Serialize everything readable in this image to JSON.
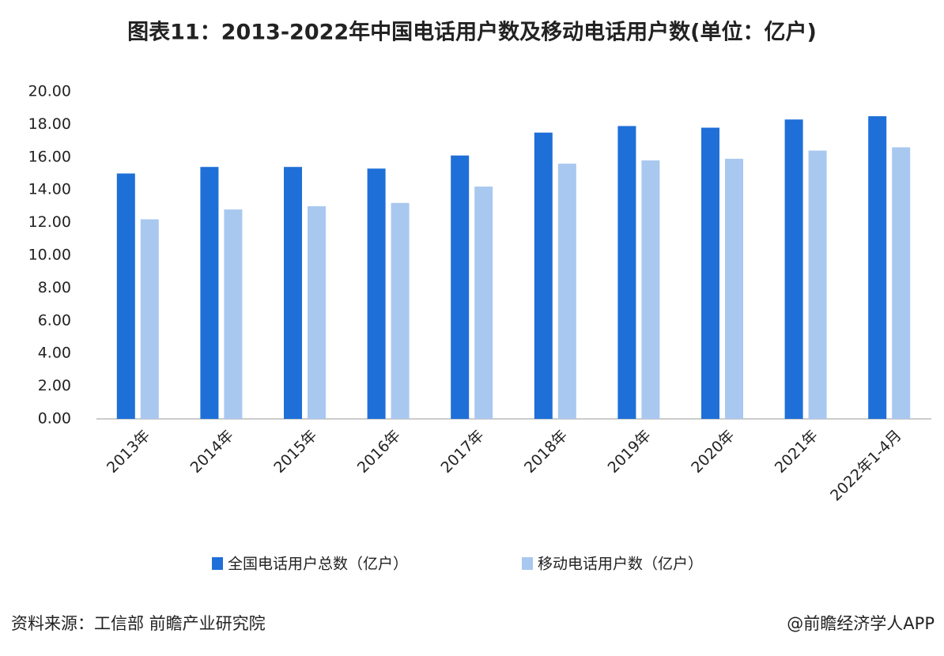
{
  "chart_data": {
    "type": "bar",
    "title": "图表11：2013-2022年中国电话用户数及移动电话用户数(单位：亿户)",
    "categories": [
      "2013年",
      "2014年",
      "2015年",
      "2016年",
      "2017年",
      "2018年",
      "2019年",
      "2020年",
      "2021年",
      "2022年1-4月"
    ],
    "series": [
      {
        "name": "全国电话用户总数（亿户）",
        "color": "#1f6fd8",
        "values": [
          15.0,
          15.4,
          15.4,
          15.3,
          16.1,
          17.5,
          17.9,
          17.8,
          18.3,
          18.5
        ]
      },
      {
        "name": "移动电话用户数（亿户）",
        "color": "#a9c8f0",
        "values": [
          12.2,
          12.8,
          13.0,
          13.2,
          14.2,
          15.6,
          15.8,
          15.9,
          16.4,
          16.6
        ]
      }
    ],
    "ylim": [
      0,
      20
    ],
    "yticks": [
      {
        "value": 0,
        "label": "0.00"
      },
      {
        "value": 2,
        "label": "2.00"
      },
      {
        "value": 4,
        "label": "4.00"
      },
      {
        "value": 6,
        "label": "6.00"
      },
      {
        "value": 8,
        "label": "8.00"
      },
      {
        "value": 10,
        "label": "10.00"
      },
      {
        "value": 12,
        "label": "12.00"
      },
      {
        "value": 14,
        "label": "14.00"
      },
      {
        "value": 16,
        "label": "16.00"
      },
      {
        "value": 18,
        "label": "18.00"
      },
      {
        "value": 20,
        "label": "20.00"
      }
    ],
    "grid": false,
    "legend": "bottom",
    "source": "资料来源：工信部 前瞻产业研究院",
    "credit": "@前瞻经济学人APP"
  }
}
